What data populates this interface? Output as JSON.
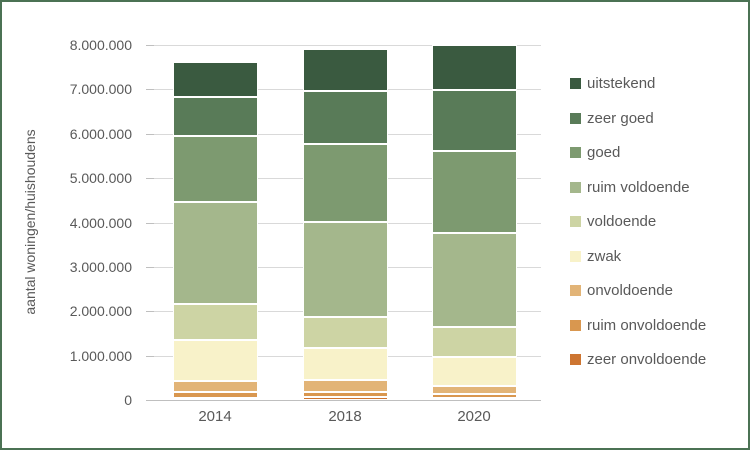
{
  "frame": {
    "border_color": "#4b7254",
    "background": "#ffffff"
  },
  "axis": {
    "ylabel": "aantal woningen/huishoudens",
    "ytick_labels": [
      "0",
      "1.000.000",
      "2.000.000",
      "3.000.000",
      "4.000.000",
      "5.000.000",
      "6.000.000",
      "7.000.000",
      "8.000.000"
    ],
    "xtick_labels": [
      "2014",
      "2018",
      "2020"
    ],
    "text_color": "#595959",
    "gridline_color": "#d9d9d9",
    "axisline_color": "#bfbfbf"
  },
  "chart_data": {
    "type": "bar",
    "subtype": "stacked-vertical",
    "title": "",
    "xlabel": "",
    "ylabel": "aantal woningen/huishoudens",
    "categories": [
      "2014",
      "2018",
      "2020"
    ],
    "series": [
      {
        "name": "uitstekend",
        "color": "#3a5a40",
        "values": [
          790000,
          930000,
          1010000
        ]
      },
      {
        "name": "zeer goed",
        "color": "#597b58",
        "values": [
          880000,
          1190000,
          1370000
        ]
      },
      {
        "name": "goed",
        "color": "#7d9a70",
        "values": [
          1490000,
          1760000,
          1860000
        ]
      },
      {
        "name": "ruim voldoende",
        "color": "#a4b78c",
        "values": [
          2300000,
          2160000,
          2120000
        ]
      },
      {
        "name": "voldoende",
        "color": "#cdd4a4",
        "values": [
          810000,
          690000,
          680000
        ]
      },
      {
        "name": "zwak",
        "color": "#f8f2c9",
        "values": [
          920000,
          730000,
          640000
        ]
      },
      {
        "name": "onvoldoende",
        "color": "#e2b477",
        "values": [
          250000,
          250000,
          190000
        ]
      },
      {
        "name": "ruim onvoldoende",
        "color": "#d9974f",
        "values": [
          130000,
          130000,
          90000
        ]
      },
      {
        "name": "zeer onvoldoende",
        "color": "#cd7531",
        "values": [
          50000,
          60000,
          40000
        ]
      }
    ],
    "totals": [
      7620000,
      7900000,
      8000000
    ],
    "ylim": [
      0,
      8000000
    ],
    "ytick_step": 1000000,
    "grid": true,
    "legend_position": "right",
    "legend_order": "top-is-top-of-stack"
  }
}
